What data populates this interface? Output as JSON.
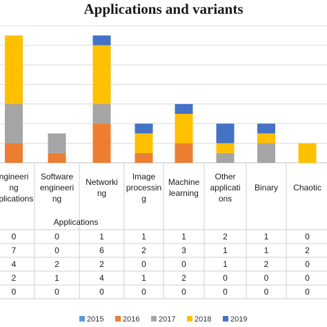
{
  "chart_data": {
    "type": "bar",
    "stacked": true,
    "title": "Applications and variants",
    "xlabel": "Applications",
    "categories": [
      [
        "ngineeri",
        "ng",
        "pplications"
      ],
      [
        "Software",
        "engineeri",
        "ng"
      ],
      [
        "Networki",
        "ng"
      ],
      [
        "Image",
        "processin",
        "g"
      ],
      [
        "Machine",
        "learning"
      ],
      [
        "Other",
        "applicati",
        "ons"
      ],
      [
        "Binary"
      ],
      [
        "Chaotic"
      ]
    ],
    "series": [
      {
        "name": "2015",
        "color": "#5b9bd5",
        "values": [
          0,
          0,
          0,
          0,
          0,
          0,
          0,
          0
        ]
      },
      {
        "name": "2016",
        "color": "#ed7d31",
        "values": [
          2,
          1,
          4,
          1,
          2,
          0,
          0,
          0
        ]
      },
      {
        "name": "2017",
        "color": "#a5a5a5",
        "values": [
          4,
          2,
          2,
          0,
          0,
          1,
          2,
          0
        ]
      },
      {
        "name": "2018",
        "color": "#ffc000",
        "values": [
          7,
          0,
          6,
          2,
          3,
          1,
          1,
          2
        ]
      },
      {
        "name": "2019",
        "color": "#4472c4",
        "values": [
          0,
          0,
          1,
          1,
          1,
          2,
          1,
          0
        ]
      }
    ],
    "table_row_order": [
      "2019",
      "2018",
      "2017",
      "2016",
      "2015"
    ],
    "legend_position": "bottom",
    "grid": true
  }
}
